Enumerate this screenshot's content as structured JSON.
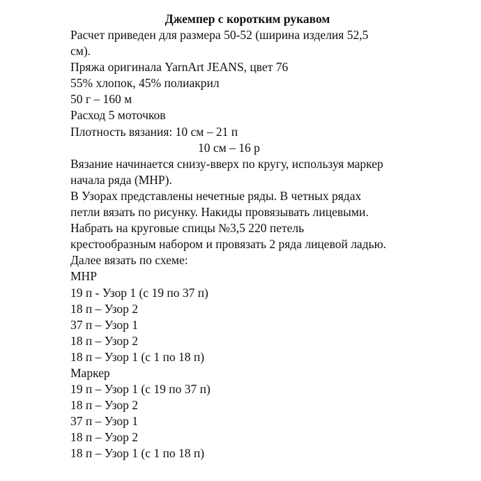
{
  "title": "Джемпер с коротким рукавом",
  "lines": [
    "Расчет приведен для размера 50-52 (ширина изделия 52,5",
    "см).",
    "Пряжа оригинала YarnArt JEANS, цвет 76",
    "55% хлопок, 45% полиакрил",
    "50 г – 160 м",
    "Расход 5 моточков",
    "Плотность вязания: 10 см – 21 п",
    "10 см – 16 р",
    "Вязание начинается снизу-вверх по кругу, используя маркер",
    "начала ряда (МНР).",
    "В Узорах представлены нечетные ряды. В четных рядах",
    "петли вязать по рисунку. Накиды провязывать лицевыми.",
    "Набрать на круговые спицы №3,5 220 петель",
    "крестообразным набором и провязать 2 ряда лицевой ладью.",
    "Далее вязать по схеме:",
    "МНР",
    "19 п - Узор 1 (с 19 по 37 п)",
    "18 п – Узор 2",
    "37 п – Узор 1",
    "18 п – Узор 2",
    "18 п – Узор 1 (с 1 по 18 п)",
    "Маркер",
    "19 п – Узор 1 (с 19 по 37 п)",
    "18 п – Узор 2",
    "37 п – Узор 1",
    "18 п – Узор 2",
    "18 п – Узор 1 (с 1 по 18 п)"
  ]
}
